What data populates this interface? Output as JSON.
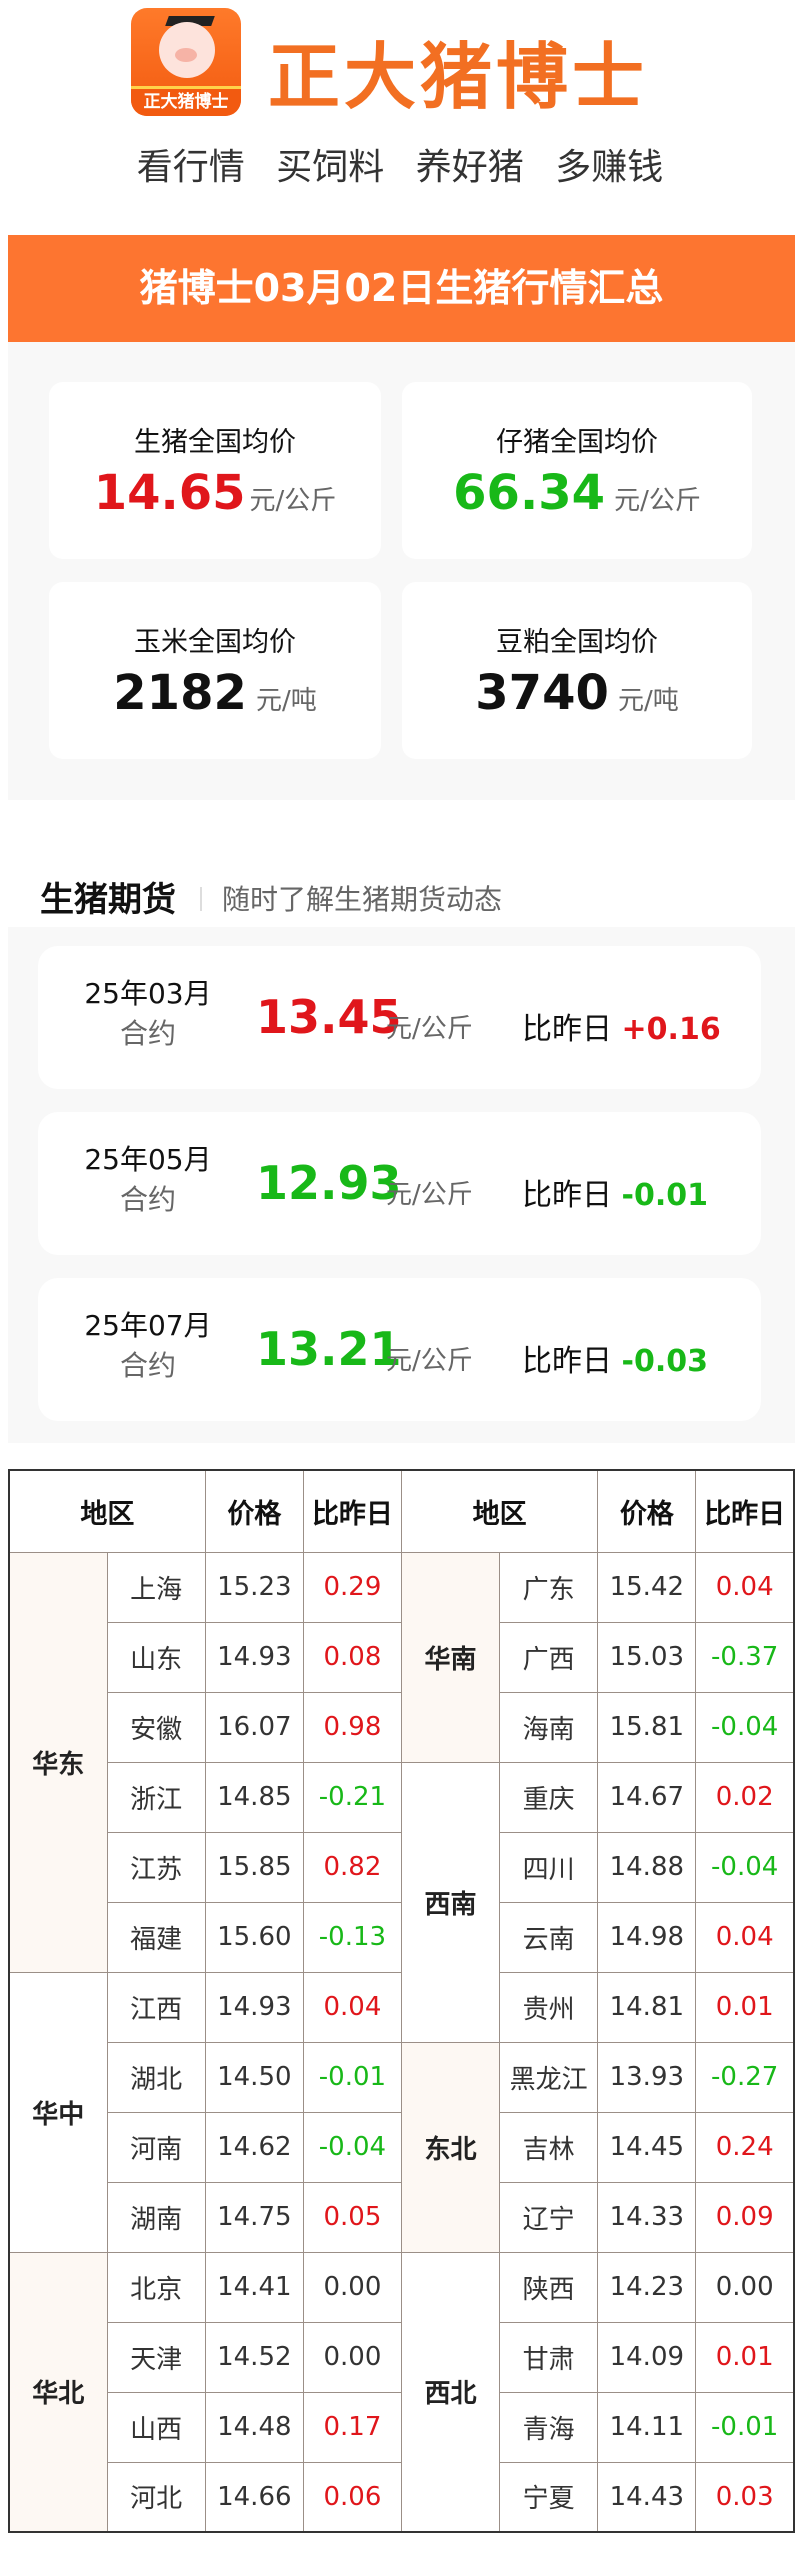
{
  "header": {
    "logo_text": "正大猪博士",
    "brand": "正大猪博士",
    "slogans": [
      "看行情",
      "买饲料",
      "养好猪",
      "多赚钱"
    ]
  },
  "banner": {
    "title": "猪博士03月02日生猪行情汇总"
  },
  "colors": {
    "accent": "#fd7530",
    "brand": "#f26f22",
    "up": "#e0161b",
    "down": "#18b818"
  },
  "averages": [
    {
      "label": "生猪全国均价",
      "value": "14.65",
      "unit": "元/公斤",
      "trend": "up"
    },
    {
      "label": "仔猪全国均价",
      "value": "66.34",
      "unit": "元/公斤",
      "trend": "down"
    },
    {
      "label": "玉米全国均价",
      "value": "2182",
      "unit": "元/吨",
      "trend": "none"
    },
    {
      "label": "豆粕全国均价",
      "value": "3740",
      "unit": "元/吨",
      "trend": "none"
    }
  ],
  "futures": {
    "title": "生猪期货",
    "subtitle": "随时了解生猪期货动态",
    "items": [
      {
        "month": "25年03月",
        "contract": "合约",
        "price": "13.45",
        "unit": "元/公斤",
        "cmp_label": "比昨日",
        "change": "+0.16",
        "trend": "up"
      },
      {
        "month": "25年05月",
        "contract": "合约",
        "price": "12.93",
        "unit": "元/公斤",
        "cmp_label": "比昨日",
        "change": "-0.01",
        "trend": "down"
      },
      {
        "month": "25年07月",
        "contract": "合约",
        "price": "13.21",
        "unit": "元/公斤",
        "cmp_label": "比昨日",
        "change": "-0.03",
        "trend": "down"
      }
    ]
  },
  "table": {
    "headers": [
      "地区",
      "价格",
      "比昨日",
      "地区",
      "价格",
      "比昨日"
    ],
    "left": [
      {
        "region": "华东",
        "rows": [
          [
            "上海",
            "15.23",
            "0.29"
          ],
          [
            "山东",
            "14.93",
            "0.08"
          ],
          [
            "安徽",
            "16.07",
            "0.98"
          ],
          [
            "浙江",
            "14.85",
            "-0.21"
          ],
          [
            "江苏",
            "15.85",
            "0.82"
          ],
          [
            "福建",
            "15.60",
            "-0.13"
          ]
        ]
      },
      {
        "region": "华中",
        "rows": [
          [
            "江西",
            "14.93",
            "0.04"
          ],
          [
            "湖北",
            "14.50",
            "-0.01"
          ],
          [
            "河南",
            "14.62",
            "-0.04"
          ],
          [
            "湖南",
            "14.75",
            "0.05"
          ]
        ]
      },
      {
        "region": "华北",
        "rows": [
          [
            "北京",
            "14.41",
            "0.00"
          ],
          [
            "天津",
            "14.52",
            "0.00"
          ],
          [
            "山西",
            "14.48",
            "0.17"
          ],
          [
            "河北",
            "14.66",
            "0.06"
          ]
        ]
      }
    ],
    "right": [
      {
        "region": "华南",
        "rows": [
          [
            "广东",
            "15.42",
            "0.04"
          ],
          [
            "广西",
            "15.03",
            "-0.37"
          ],
          [
            "海南",
            "15.81",
            "-0.04"
          ]
        ]
      },
      {
        "region": "西南",
        "rows": [
          [
            "重庆",
            "14.67",
            "0.02"
          ],
          [
            "四川",
            "14.88",
            "-0.04"
          ],
          [
            "云南",
            "14.98",
            "0.04"
          ],
          [
            "贵州",
            "14.81",
            "0.01"
          ]
        ]
      },
      {
        "region": "东北",
        "rows": [
          [
            "黑龙江",
            "13.93",
            "-0.27"
          ],
          [
            "吉林",
            "14.45",
            "0.24"
          ],
          [
            "辽宁",
            "14.33",
            "0.09"
          ]
        ]
      },
      {
        "region": "西北",
        "rows": [
          [
            "陕西",
            "14.23",
            "0.00"
          ],
          [
            "甘肃",
            "14.09",
            "0.01"
          ],
          [
            "青海",
            "14.11",
            "-0.01"
          ],
          [
            "宁夏",
            "14.43",
            "0.03"
          ]
        ]
      }
    ]
  }
}
